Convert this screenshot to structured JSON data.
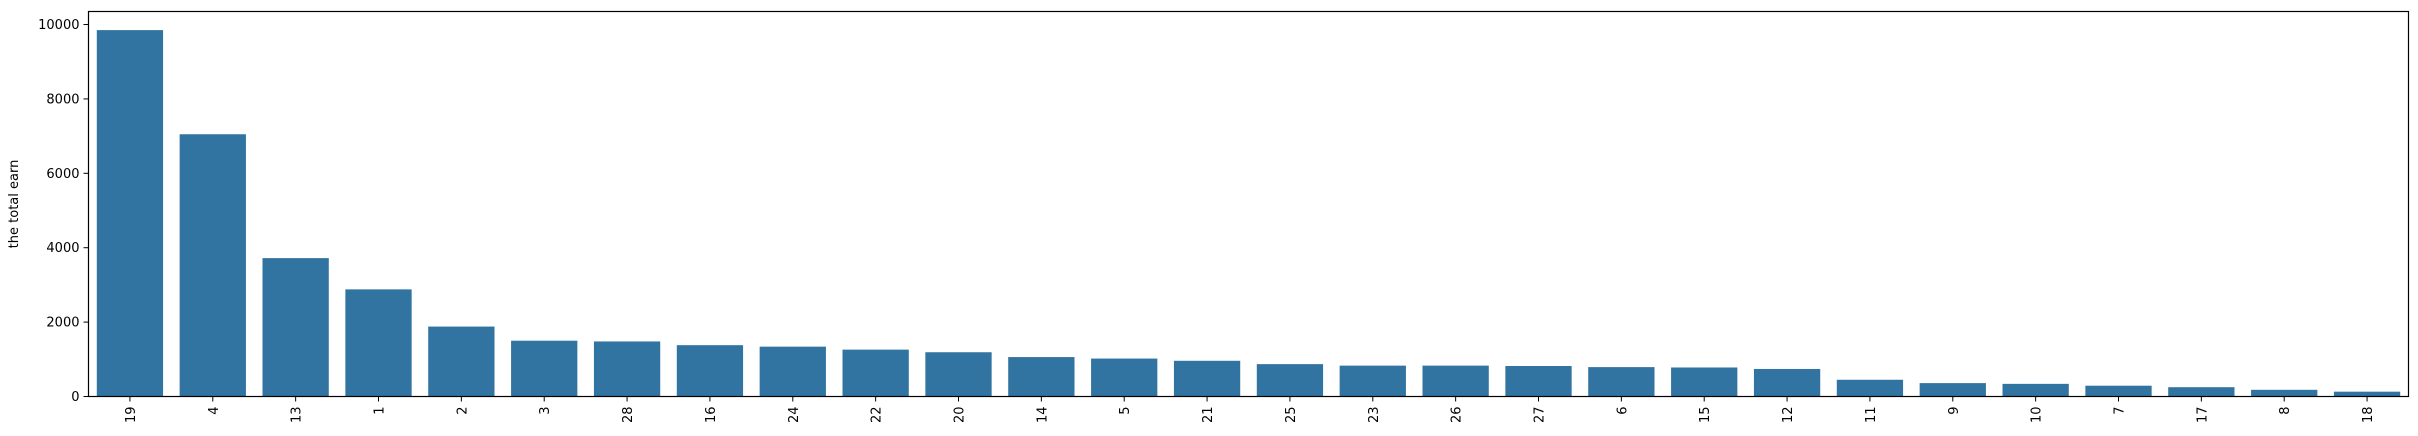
{
  "chart_data": {
    "type": "bar",
    "title": "",
    "xlabel": "",
    "ylabel": "the total earn",
    "ylim": [
      0,
      10000
    ],
    "yticks": [
      0,
      2000,
      4000,
      6000,
      8000,
      10000
    ],
    "grid": false,
    "bar_color": "#3274a1",
    "categories": [
      "19",
      "4",
      "13",
      "1",
      "2",
      "3",
      "28",
      "16",
      "24",
      "22",
      "20",
      "14",
      "5",
      "21",
      "25",
      "23",
      "26",
      "27",
      "6",
      "15",
      "12",
      "11",
      "9",
      "10",
      "7",
      "17",
      "8",
      "18"
    ],
    "values": [
      9850,
      7050,
      3720,
      2880,
      1880,
      1500,
      1480,
      1380,
      1340,
      1260,
      1190,
      1060,
      1020,
      960,
      870,
      830,
      830,
      820,
      790,
      780,
      740,
      450,
      360,
      340,
      290,
      250,
      180,
      130
    ]
  }
}
